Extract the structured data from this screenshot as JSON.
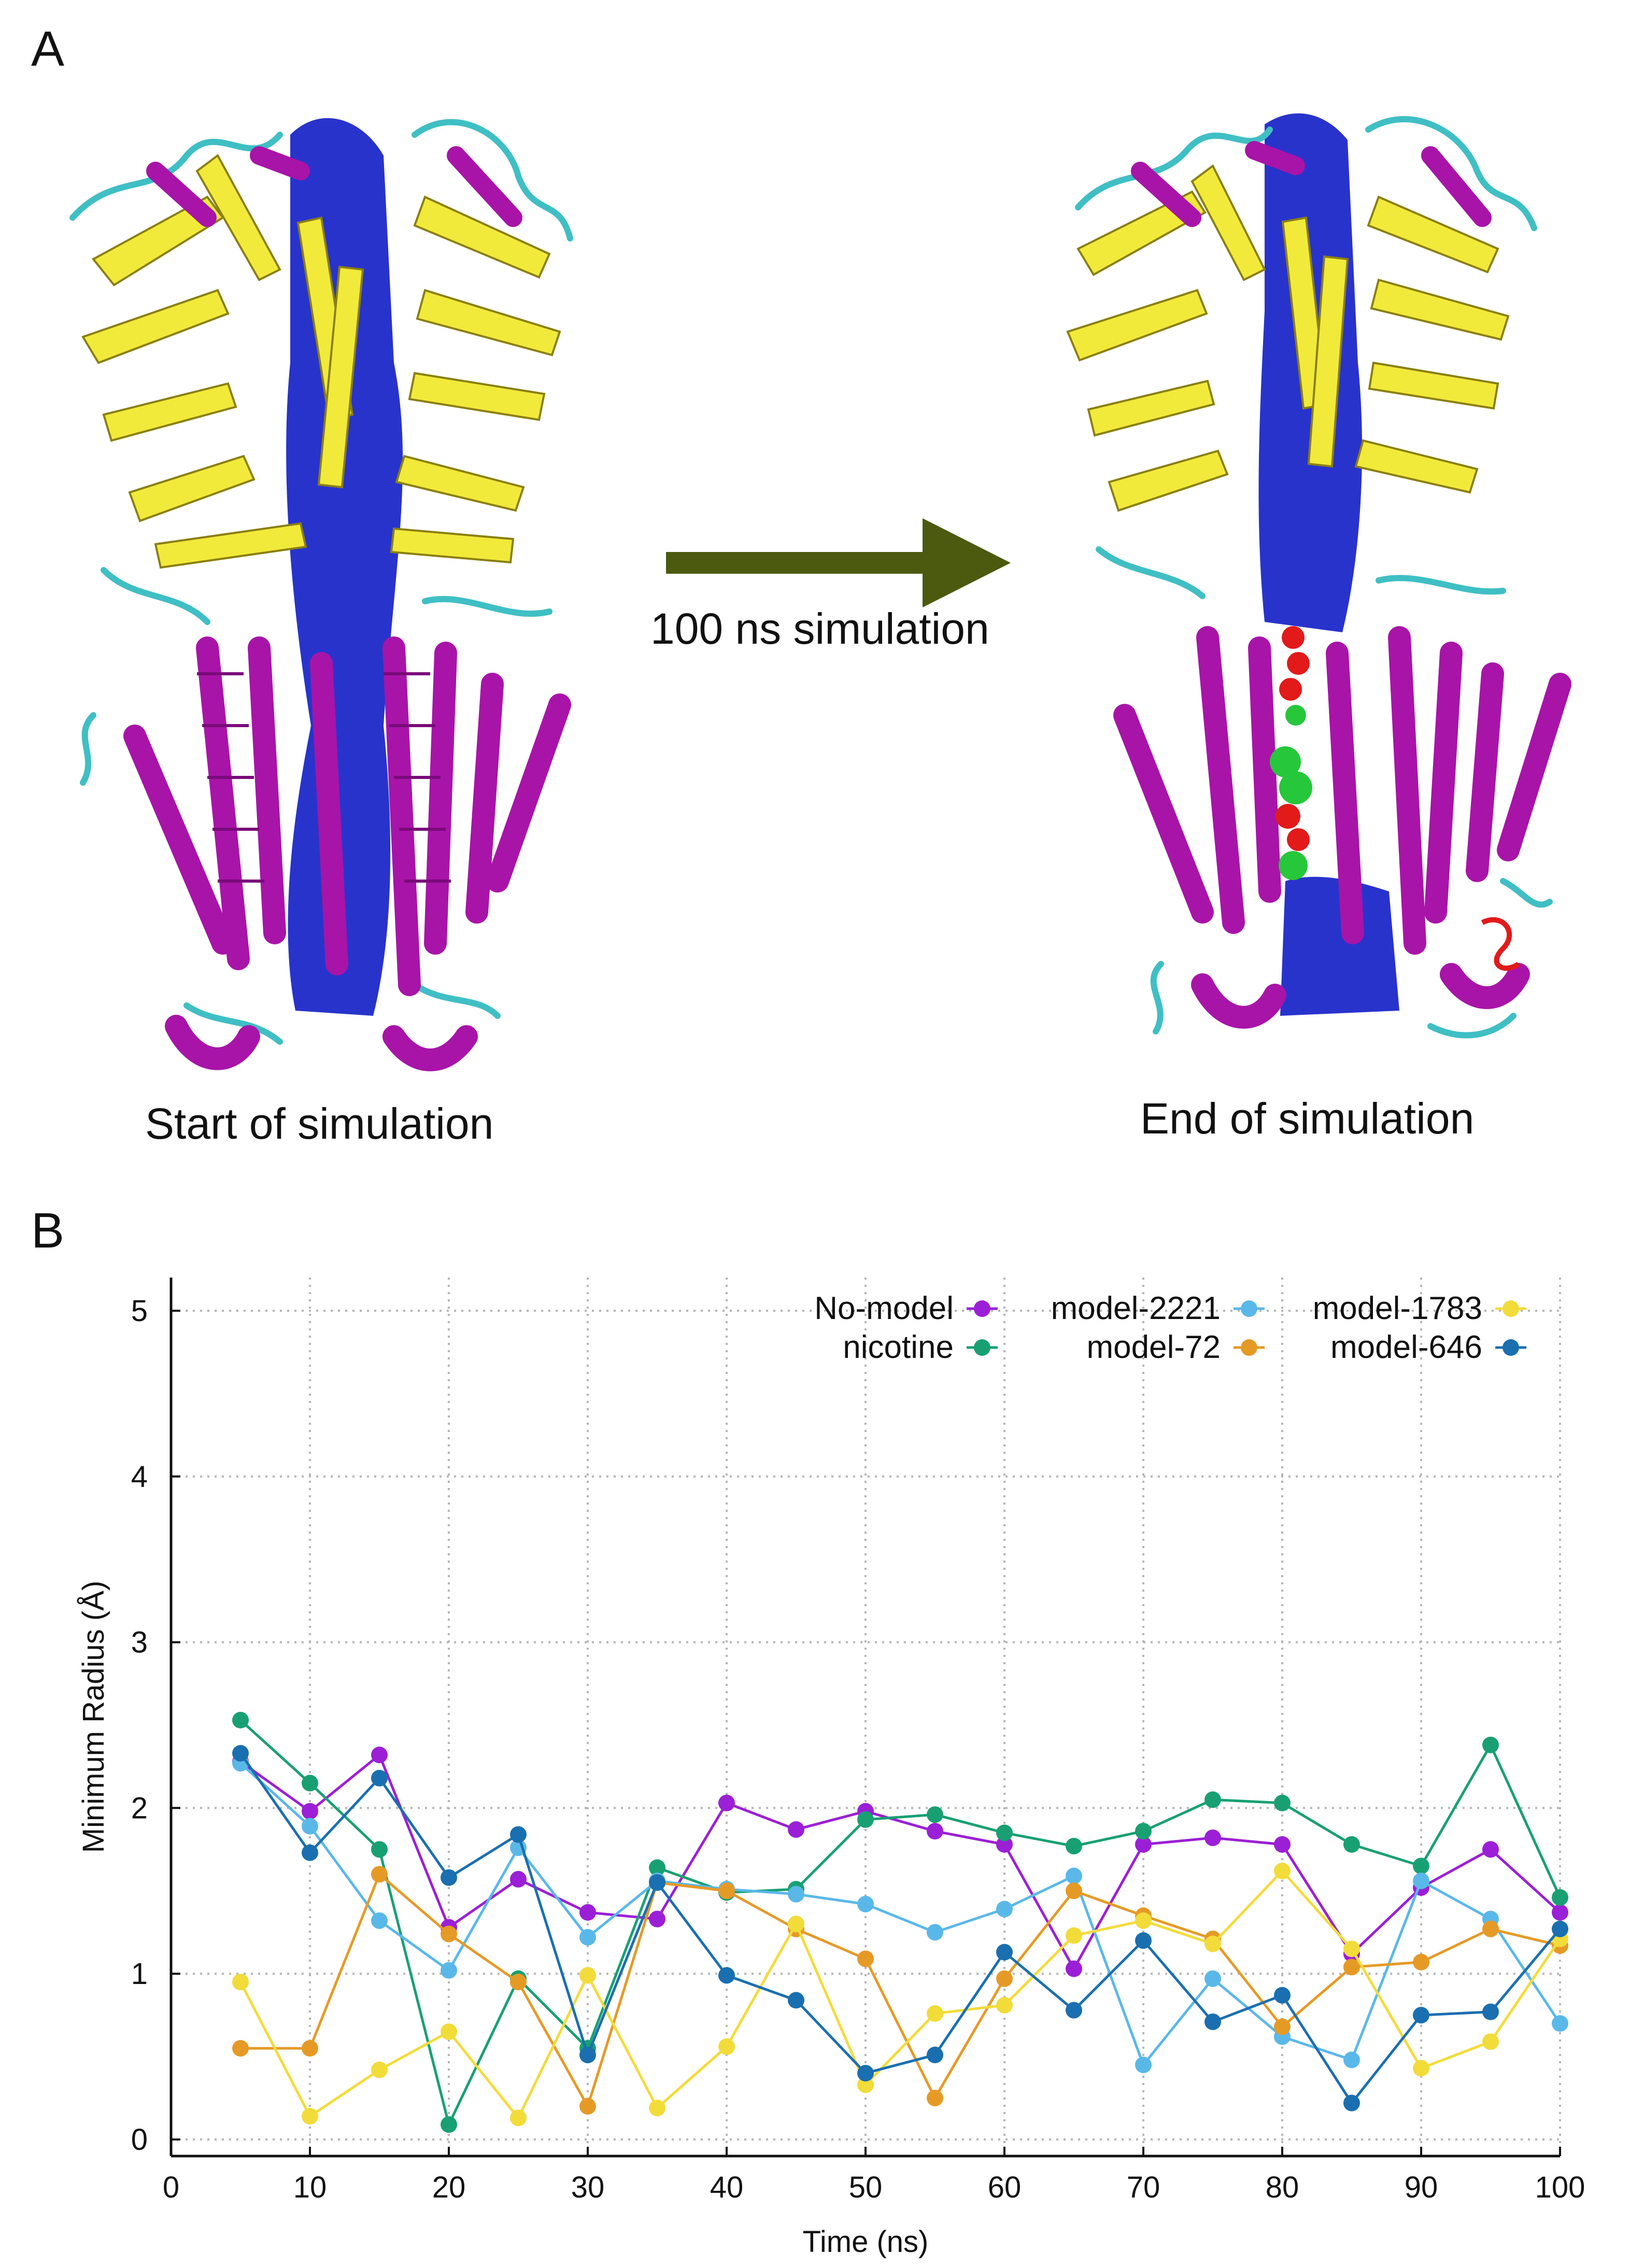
{
  "panel_a": {
    "letter": "A",
    "start_caption": "Start of simulation",
    "end_caption": "End of simulation",
    "arrow_caption": "100 ns simulation",
    "colors": {
      "sheet": "#f2ea3a",
      "helix": "#a814a8",
      "coil": "#3fbfc4",
      "pore": "#1622c8",
      "ligand_red": "#e21a1a",
      "ligand_green": "#26c73a",
      "arrow": "#4b5a0f"
    }
  },
  "panel_b": {
    "letter": "B"
  },
  "chart_data": {
    "type": "line",
    "xlabel": "Time (ns)",
    "ylabel": "Minimum Radius (Å)",
    "xlim": [
      0,
      100
    ],
    "ylim": [
      -0.1,
      5.2
    ],
    "xticks": [
      0,
      10,
      20,
      30,
      40,
      50,
      60,
      70,
      80,
      90,
      100
    ],
    "yticks": [
      0,
      1,
      2,
      3,
      4,
      5
    ],
    "grid": true,
    "legend_position": "top-right",
    "x": [
      5,
      10,
      15,
      20,
      25,
      30,
      35,
      40,
      45,
      50,
      55,
      60,
      65,
      70,
      75,
      80,
      85,
      90,
      95,
      100
    ],
    "series": [
      {
        "name": "No-model",
        "color": "#9b1fd6",
        "values": [
          2.28,
          1.98,
          2.32,
          1.28,
          1.57,
          1.37,
          1.33,
          2.03,
          1.87,
          1.98,
          1.86,
          1.78,
          1.03,
          1.78,
          1.82,
          1.78,
          1.12,
          1.52,
          1.75,
          1.37
        ]
      },
      {
        "name": "nicotine",
        "color": "#18a073",
        "values": [
          2.53,
          2.15,
          1.75,
          0.09,
          0.97,
          0.55,
          1.64,
          1.49,
          1.51,
          1.93,
          1.96,
          1.85,
          1.77,
          1.86,
          2.05,
          2.03,
          1.78,
          1.65,
          2.38,
          1.46
        ]
      },
      {
        "name": "model-2221",
        "color": "#5ab8e8",
        "values": [
          2.27,
          1.89,
          1.32,
          1.02,
          1.76,
          1.22,
          1.56,
          1.51,
          1.48,
          1.42,
          1.25,
          1.39,
          1.59,
          0.45,
          0.97,
          0.62,
          0.48,
          1.56,
          1.33,
          0.7
        ]
      },
      {
        "name": "model-72",
        "color": "#e69a26",
        "values": [
          0.55,
          0.55,
          1.6,
          1.24,
          0.95,
          0.2,
          1.55,
          1.5,
          1.27,
          1.09,
          0.25,
          0.97,
          1.5,
          1.35,
          1.21,
          0.68,
          1.04,
          1.07,
          1.27,
          1.17
        ]
      },
      {
        "name": "model-1783",
        "color": "#f2dc3a",
        "values": [
          0.95,
          0.14,
          0.42,
          0.65,
          0.13,
          0.99,
          0.19,
          0.56,
          1.3,
          0.33,
          0.76,
          0.81,
          1.23,
          1.32,
          1.18,
          1.62,
          1.15,
          0.43,
          0.59,
          1.21
        ]
      },
      {
        "name": "model-646",
        "color": "#1a6fb0",
        "values": [
          2.33,
          1.73,
          2.18,
          1.58,
          1.84,
          0.51,
          1.55,
          0.99,
          0.84,
          0.4,
          0.51,
          1.13,
          0.78,
          1.2,
          0.71,
          0.87,
          0.22,
          0.75,
          0.77,
          1.27
        ]
      }
    ]
  }
}
